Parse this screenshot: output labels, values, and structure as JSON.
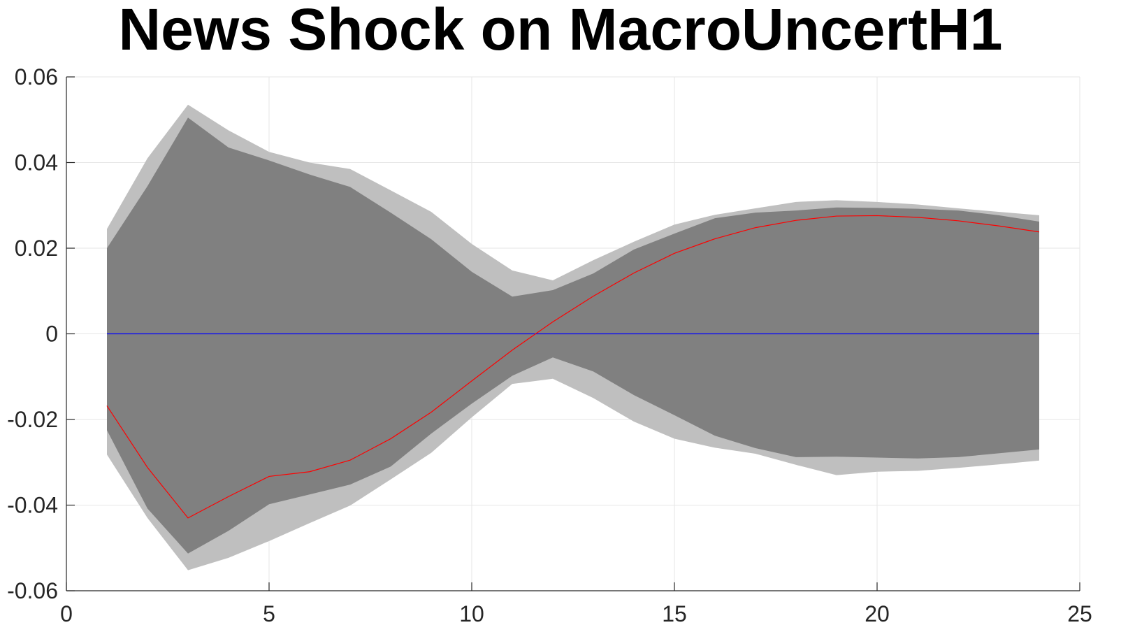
{
  "chart_data": {
    "type": "area",
    "title": "News Shock on MacroUncertH1",
    "xlabel": "",
    "ylabel": "",
    "xlim": [
      0,
      25
    ],
    "ylim": [
      -0.06,
      0.06
    ],
    "xticks": [
      0,
      5,
      10,
      15,
      20,
      25
    ],
    "xtick_labels": [
      "0",
      "5",
      "10",
      "15",
      "20",
      "25"
    ],
    "yticks": [
      0.06,
      0.04,
      0.02,
      0,
      -0.02,
      -0.04,
      -0.06
    ],
    "ytick_labels": [
      "0.06",
      "0.04",
      "0.02",
      "0",
      "-0.02",
      "-0.04",
      "-0.06"
    ],
    "grid": true,
    "x": [
      1,
      2,
      3,
      4,
      5,
      6,
      7,
      8,
      9,
      10,
      11,
      12,
      13,
      14,
      15,
      16,
      17,
      18,
      19,
      20,
      21,
      22,
      23,
      24
    ],
    "outer_band": {
      "upper": [
        0.0245,
        0.041,
        0.0535,
        0.0475,
        0.0425,
        0.04,
        0.0385,
        0.0335,
        0.0285,
        0.021,
        0.0148,
        0.0125,
        0.0172,
        0.0215,
        0.0255,
        0.0278,
        0.0293,
        0.0308,
        0.0312,
        0.0308,
        0.0302,
        0.0293,
        0.0285,
        0.0277
      ],
      "lower": [
        -0.0282,
        -0.043,
        -0.0552,
        -0.0523,
        -0.0484,
        -0.0442,
        -0.0401,
        -0.034,
        -0.0278,
        -0.0195,
        -0.0117,
        -0.0105,
        -0.015,
        -0.0205,
        -0.0245,
        -0.0266,
        -0.028,
        -0.0306,
        -0.033,
        -0.0322,
        -0.032,
        -0.0313,
        -0.0305,
        -0.0296
      ],
      "color": "#bfbfbf"
    },
    "inner_band": {
      "upper": [
        0.02,
        0.0345,
        0.0505,
        0.0435,
        0.0405,
        0.0372,
        0.0343,
        0.0283,
        0.0221,
        0.0145,
        0.0087,
        0.0102,
        0.0141,
        0.0197,
        0.0234,
        0.027,
        0.0283,
        0.0288,
        0.0295,
        0.0294,
        0.0292,
        0.0288,
        0.0277,
        0.0262
      ],
      "lower": [
        -0.0225,
        -0.0408,
        -0.0513,
        -0.046,
        -0.0398,
        -0.0375,
        -0.0352,
        -0.031,
        -0.0233,
        -0.0163,
        -0.0098,
        -0.0055,
        -0.0088,
        -0.0143,
        -0.019,
        -0.0238,
        -0.0267,
        -0.0288,
        -0.0287,
        -0.0289,
        -0.0291,
        -0.0288,
        -0.0279,
        -0.027
      ],
      "color": "#808080"
    },
    "series": [
      {
        "values": [
          -0.0168,
          -0.0312,
          -0.043,
          -0.038,
          -0.0333,
          -0.0322,
          -0.0295,
          -0.0245,
          -0.0183,
          -0.011,
          -0.0038,
          0.0028,
          0.0088,
          0.0142,
          0.0188,
          0.0222,
          0.0248,
          0.0265,
          0.0275,
          0.0276,
          0.0272,
          0.0264,
          0.0252,
          0.0238
        ],
        "color": "#ff0000"
      },
      {
        "values": [
          0,
          0,
          0,
          0,
          0,
          0,
          0,
          0,
          0,
          0,
          0,
          0,
          0,
          0,
          0,
          0,
          0,
          0,
          0,
          0,
          0,
          0,
          0,
          0
        ],
        "color": "#0000ff"
      }
    ]
  }
}
